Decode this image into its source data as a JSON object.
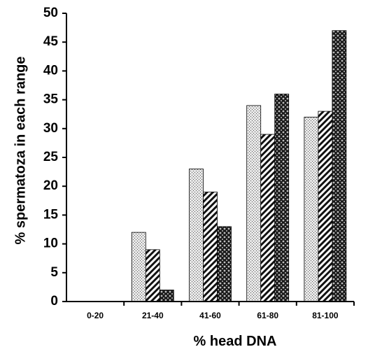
{
  "chart_data": {
    "type": "bar",
    "title": "",
    "xlabel": "% head DNA",
    "ylabel": "% spermatoza in each range",
    "categories": [
      "0-20",
      "21-40",
      "41-60",
      "61-80",
      "81-100"
    ],
    "series": [
      {
        "values": [
          0,
          12,
          23,
          34,
          32
        ],
        "pattern": "dotted"
      },
      {
        "values": [
          0,
          9,
          19,
          29,
          33
        ],
        "pattern": "diagonal-hatch"
      },
      {
        "values": [
          0,
          2,
          13,
          36,
          47
        ],
        "pattern": "dark-crosshatch"
      }
    ],
    "ylim": [
      0,
      50
    ],
    "yticks": [
      0,
      5,
      10,
      15,
      20,
      25,
      30,
      35,
      40,
      45,
      50
    ],
    "grid": false,
    "legend": "none"
  }
}
